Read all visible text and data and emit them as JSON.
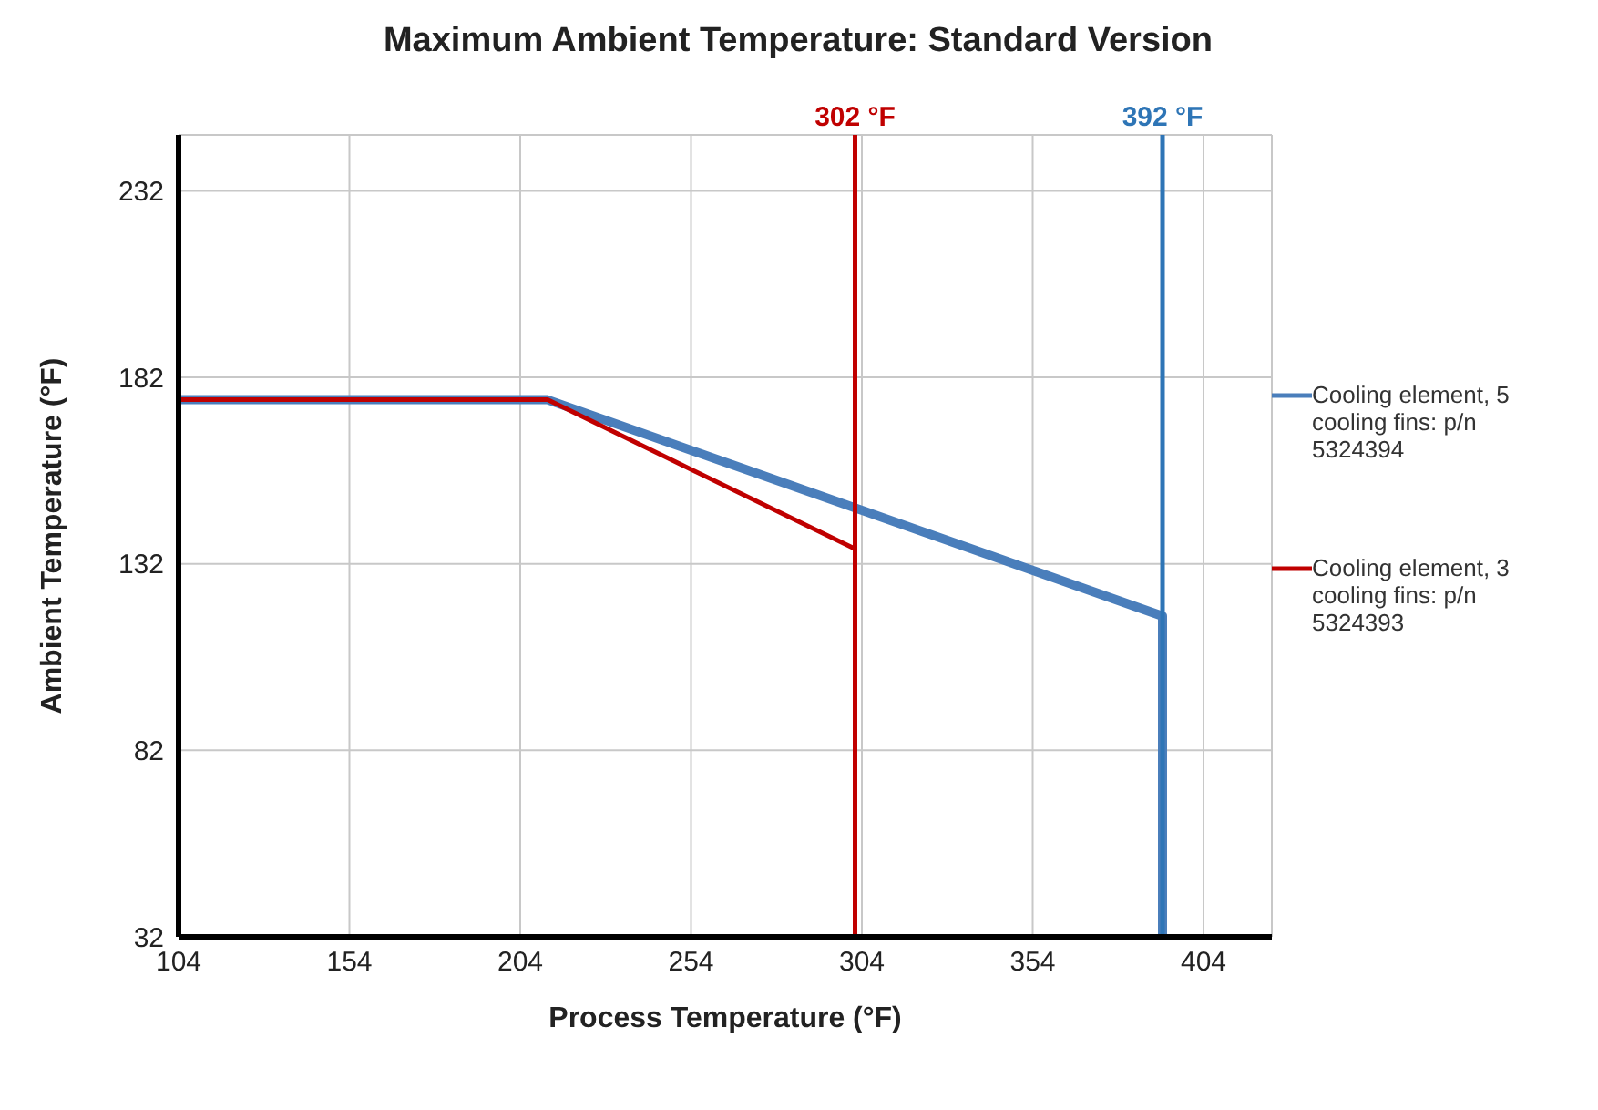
{
  "chart_data": {
    "type": "line",
    "title": "Maximum Ambient Temperature: Standard Version",
    "xlabel": "Process Temperature (°F)",
    "ylabel": "Ambient Temperature (°F)",
    "series": [
      {
        "name": "Cooling element, 5 cooling fins: p/n 5324394",
        "color": "#4a7ebb",
        "x": [
          104,
          212,
          392,
          392
        ],
        "values": [
          176,
          176,
          118,
          32
        ]
      },
      {
        "name": "Cooling element, 3 cooling fins: p/n 5324393",
        "color": "#c00000",
        "x": [
          104,
          212,
          302,
          302
        ],
        "values": [
          176,
          176,
          136,
          32
        ]
      }
    ],
    "xlim": [
      104,
      424
    ],
    "xticks": [
      104,
      154,
      204,
      254,
      304,
      354,
      404
    ],
    "ylim": [
      32,
      247
    ],
    "yticks": [
      32,
      82,
      132,
      182,
      232
    ],
    "ref_lines": [
      {
        "axis": "x",
        "value": 302,
        "label": "302 °F",
        "color": "#c00000"
      },
      {
        "axis": "x",
        "value": 392,
        "label": "392 °F",
        "color": "#2e75b6"
      }
    ],
    "grid": true,
    "legend": "right",
    "marker": "none",
    "line_style": "solid"
  }
}
